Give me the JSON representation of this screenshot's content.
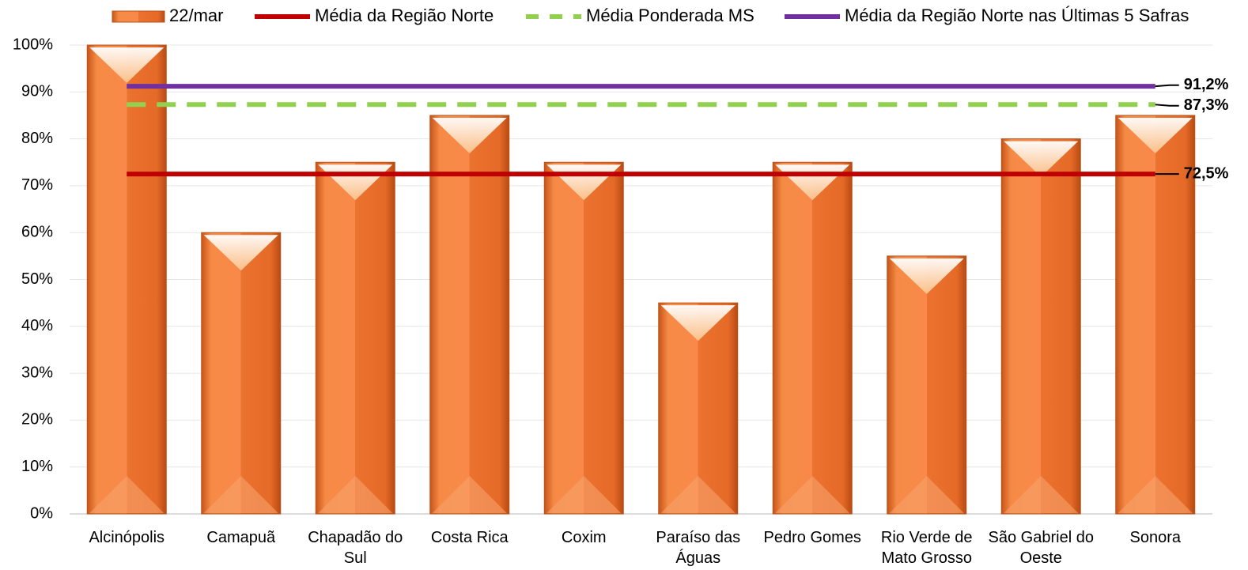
{
  "chart_data": {
    "type": "bar",
    "categories": [
      "Alcinópolis",
      "Camapuã",
      "Chapadão do Sul",
      "Costa Rica",
      "Coxim",
      "Paraíso das Águas",
      "Pedro Gomes",
      "Rio Verde de Mato Grosso",
      "São Gabriel do Oeste",
      "Sonora"
    ],
    "series": [
      {
        "name": "22/mar",
        "type": "bar",
        "color": "#ed7d31",
        "values": [
          100,
          60,
          75,
          85,
          75,
          45,
          75,
          55,
          80,
          85
        ]
      },
      {
        "name": "Média da Região Norte",
        "type": "line",
        "color": "#c00000",
        "dashed": false,
        "values": [
          72.5,
          72.5,
          72.5,
          72.5,
          72.5,
          72.5,
          72.5,
          72.5,
          72.5,
          72.5
        ],
        "value_labels": [
          null,
          null,
          null,
          null,
          null,
          null,
          null,
          null,
          null,
          "72,5%"
        ]
      },
      {
        "name": "Média Ponderada MS",
        "type": "line",
        "color": "#92d050",
        "dashed": true,
        "values": [
          87.3,
          87.3,
          87.3,
          87.3,
          87.3,
          87.3,
          87.3,
          87.3,
          87.3,
          87.3
        ],
        "value_labels": [
          null,
          null,
          null,
          null,
          null,
          null,
          null,
          null,
          null,
          "87,3%"
        ]
      },
      {
        "name": "Média da Região Norte nas Últimas 5 Safras",
        "type": "line",
        "color": "#7030a0",
        "dashed": false,
        "values": [
          91.2,
          91.2,
          91.2,
          91.2,
          91.2,
          91.2,
          91.2,
          91.2,
          91.2,
          91.2
        ],
        "value_labels": [
          null,
          null,
          null,
          null,
          null,
          null,
          null,
          null,
          null,
          "91,2%"
        ]
      }
    ],
    "ylim": [
      0,
      100
    ],
    "yticks": [
      {
        "value": 0,
        "label": "0%"
      },
      {
        "value": 10,
        "label": "10%"
      },
      {
        "value": 20,
        "label": "20%"
      },
      {
        "value": 30,
        "label": "30%"
      },
      {
        "value": 40,
        "label": "40%"
      },
      {
        "value": 50,
        "label": "50%"
      },
      {
        "value": 60,
        "label": "60%"
      },
      {
        "value": 70,
        "label": "70%"
      },
      {
        "value": 80,
        "label": "80%"
      },
      {
        "value": 90,
        "label": "90%"
      },
      {
        "value": 100,
        "label": "100%"
      }
    ],
    "grid": true,
    "legend": "top"
  }
}
